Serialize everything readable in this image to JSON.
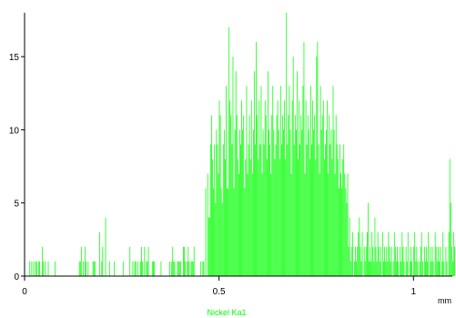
{
  "chart_data": {
    "type": "bar",
    "title": "",
    "xlabel": "",
    "x_unit": "mm",
    "ylabel": "",
    "xlim": [
      0,
      1.1
    ],
    "ylim": [
      0,
      18
    ],
    "x_ticks": [
      0,
      0.5,
      1
    ],
    "x_tick_labels": [
      "0",
      "0.5",
      "1"
    ],
    "y_ticks": [
      0,
      5,
      10,
      15
    ],
    "y_tick_labels": [
      "0",
      "5",
      "10",
      "15"
    ],
    "grid": false,
    "legend": "bottom-center",
    "series_name": "Nickel Ka1",
    "series_color": "#00ff00",
    "step_mm": 0.0025,
    "values": [
      0,
      0,
      0,
      0,
      0,
      1,
      0,
      1,
      0,
      1,
      0,
      1,
      1,
      0,
      1,
      1,
      0,
      0,
      2,
      1,
      0,
      1,
      0,
      0,
      1,
      0,
      0,
      0,
      0,
      0,
      0,
      1,
      0,
      0,
      0,
      0,
      0,
      0,
      0,
      0,
      0,
      0,
      0,
      0,
      0,
      0,
      0,
      0,
      0,
      0,
      0,
      0,
      0,
      0,
      0,
      0,
      1,
      1,
      2,
      0,
      1,
      0,
      2,
      1,
      0,
      1,
      0,
      0,
      0,
      0,
      1,
      1,
      1,
      0,
      0,
      0,
      0,
      3,
      0,
      1,
      2,
      0,
      0,
      4,
      0,
      0,
      0,
      1,
      0,
      0,
      0,
      0,
      1,
      0,
      0,
      0,
      0,
      0,
      0,
      0,
      0,
      1,
      0,
      0,
      0,
      0,
      0,
      0,
      2,
      0,
      0,
      1,
      0,
      1,
      1,
      0,
      1,
      0,
      0,
      1,
      2,
      1,
      0,
      2,
      0,
      1,
      1,
      2,
      0,
      0,
      0,
      1,
      1,
      1,
      0,
      0,
      0,
      0,
      0,
      0,
      1,
      0,
      0,
      0,
      0,
      0,
      0,
      0,
      0,
      1,
      0,
      1,
      2,
      1,
      1,
      0,
      0,
      1,
      1,
      1,
      1,
      0,
      0,
      2,
      2,
      1,
      0,
      1,
      2,
      1,
      0,
      1,
      1,
      1,
      2,
      0,
      0,
      0,
      0,
      0,
      0,
      1,
      0,
      1,
      1,
      0,
      6,
      0,
      7,
      4,
      4,
      9,
      11,
      8,
      6,
      9,
      5,
      10,
      9,
      7,
      12,
      11,
      6,
      5,
      9,
      10,
      8,
      13,
      6,
      6,
      17,
      12,
      11,
      9,
      15,
      6,
      10,
      14,
      11,
      8,
      7,
      10,
      9,
      12,
      10,
      11,
      6,
      8,
      13,
      7,
      9,
      11,
      8,
      12,
      7,
      10,
      14,
      9,
      16,
      11,
      8,
      12,
      9,
      13,
      7,
      10,
      9,
      12,
      11,
      8,
      14,
      10,
      9,
      7,
      11,
      13,
      10,
      8,
      9,
      11,
      12,
      10,
      8,
      13,
      9,
      11,
      10,
      12,
      8,
      18,
      9,
      11,
      13,
      10,
      7,
      12,
      15,
      9,
      11,
      10,
      14,
      8,
      12,
      9,
      11,
      10,
      13,
      16,
      7,
      12,
      9,
      11,
      10,
      8,
      13,
      9,
      12,
      10,
      11,
      8,
      15,
      16,
      9,
      7,
      13,
      10,
      11,
      12,
      8,
      9,
      10,
      12,
      7,
      11,
      9,
      10,
      8,
      13,
      10,
      7,
      11,
      9,
      8,
      6,
      9,
      7,
      6,
      8,
      9,
      7,
      6,
      5,
      7,
      2,
      4,
      1,
      2,
      3,
      0,
      1,
      2,
      1,
      2,
      3,
      4,
      2,
      1,
      3,
      0,
      2,
      1,
      2,
      3,
      5,
      1,
      2,
      1,
      3,
      2,
      1,
      4,
      2,
      1,
      3,
      2,
      1,
      2,
      0,
      3,
      1,
      2,
      1,
      2,
      1,
      3,
      2,
      1,
      2,
      0,
      1,
      3,
      2,
      1,
      2,
      1,
      0,
      2,
      1,
      3,
      2,
      1,
      0,
      2,
      1,
      3,
      0,
      1,
      2,
      1,
      0,
      2,
      3,
      1,
      2,
      1,
      0,
      1,
      2,
      3,
      1,
      0,
      2,
      1,
      2,
      1,
      3,
      0,
      2,
      1,
      2,
      1,
      0,
      3,
      2,
      1,
      2,
      1,
      2,
      0,
      1,
      3,
      1,
      0,
      2,
      1,
      0,
      3,
      8,
      5,
      2,
      1,
      3,
      2,
      0,
      1,
      2,
      1,
      0,
      3,
      2,
      1,
      1,
      2,
      4
    ]
  }
}
